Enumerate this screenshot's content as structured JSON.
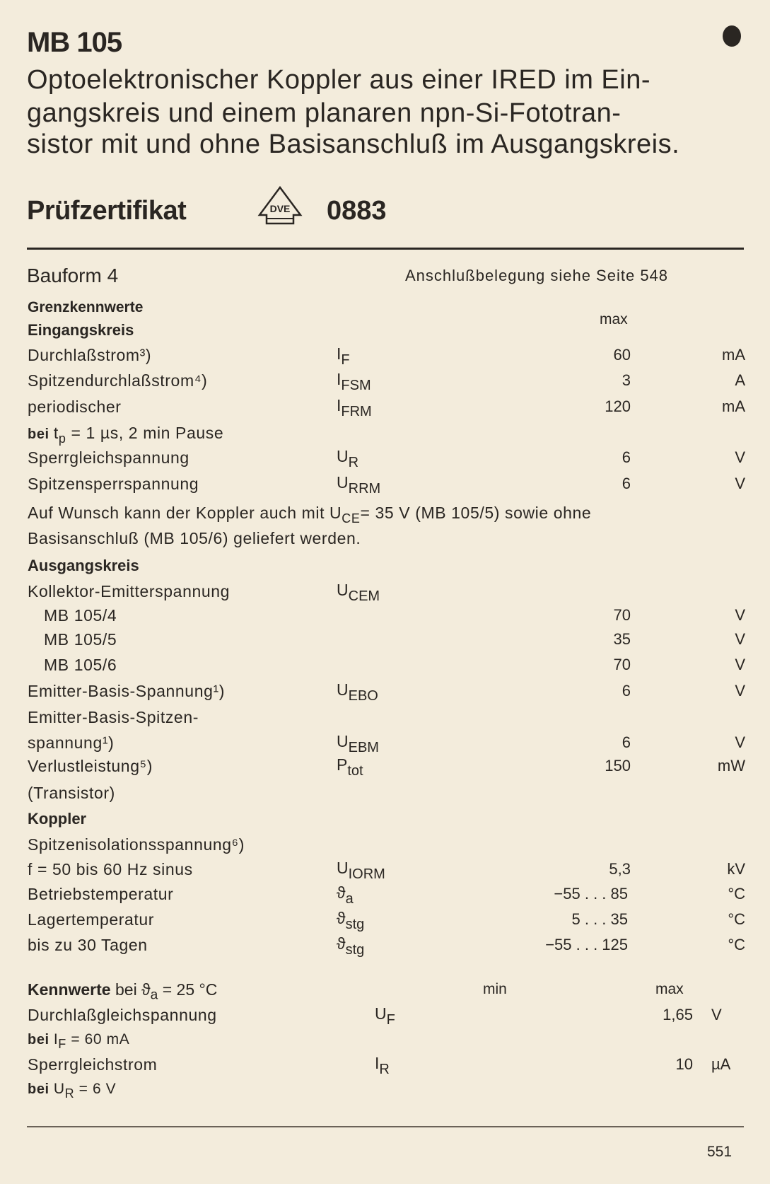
{
  "header": {
    "title": "MB 105",
    "description_lines": [
      "Optoelektronischer Koppler aus einer IRED im Ein-",
      "gangskreis und einem planaren npn-Si-Fototran-",
      "sistor mit und ohne Basisanschluß im Ausgangskreis."
    ],
    "certificate_label": "Prüfzertifikat",
    "certificate_logo_text": "DVE",
    "certificate_number": "0883"
  },
  "package": {
    "bauform": "Bauform 4",
    "pinout_note": "Anschlußbelegung siehe Seite 548"
  },
  "limits": {
    "heading": "Grenzkennwerte",
    "max_label": "max",
    "rows": [
      {
        "type": "heading",
        "label": "Eingangskreis"
      },
      {
        "label": "Durchlaßstrom³)",
        "symbol": "I",
        "sub": "F",
        "value": "60",
        "unit": "mA"
      },
      {
        "label": "Spitzendurchlaßstrom⁴)",
        "symbol": "I",
        "sub": "FSM",
        "value": "3",
        "unit": "A"
      },
      {
        "label": "periodischer",
        "symbol": "I",
        "sub": "FRM",
        "value": "120",
        "unit": "mA"
      },
      {
        "segments": [
          {
            "t": "bei ",
            "b": true
          },
          {
            "t": "t"
          },
          {
            "s": "p"
          },
          {
            "t": " = 1 µs, 2 min Pause"
          }
        ]
      },
      {
        "label": "Sperrgleichspannung",
        "symbol": "U",
        "sub": "R",
        "value": "6",
        "unit": "V"
      },
      {
        "label": "Spitzensperrspannung",
        "symbol": "U",
        "sub": "RRM",
        "value": "6",
        "unit": "V"
      },
      {
        "segments": [
          {
            "t": "Auf Wunsch kann der Koppler auch mit U"
          },
          {
            "s": "CE"
          },
          {
            "t": "= 35 V (MB 105/5) sowie ohne"
          }
        ],
        "wide": true
      },
      {
        "label": "Basisanschluß (MB 105/6) geliefert werden."
      },
      {
        "type": "heading",
        "label": "Ausgangskreis"
      },
      {
        "label": "Kollektor-Emitterspannung",
        "symbol": "U",
        "sub": "CEM"
      },
      {
        "label": "MB 105/4",
        "indent": true,
        "value": "70",
        "unit": "V"
      },
      {
        "label": "MB 105/5",
        "indent": true,
        "value": "35",
        "unit": "V"
      },
      {
        "label": "MB 105/6",
        "indent": true,
        "value": "70",
        "unit": "V"
      },
      {
        "label": "Emitter-Basis-Spannung¹)",
        "symbol": "U",
        "sub": "EBO",
        "value": "6",
        "unit": "V"
      },
      {
        "label": "Emitter-Basis-Spitzen-"
      },
      {
        "label": "spannung¹)",
        "symbol": "U",
        "sub": "EBM",
        "value": "6",
        "unit": "V"
      },
      {
        "label": "Verlustleistung⁵)",
        "symbol": "P",
        "sub": "tot",
        "value": "150",
        "unit": "mW"
      },
      {
        "label": "(Transistor)"
      },
      {
        "type": "heading",
        "label": "Koppler"
      },
      {
        "label": "Spitzenisolationsspannung⁶)"
      },
      {
        "label": "f = 50 bis 60 Hz sinus",
        "symbol": "U",
        "sub": "IORM",
        "value": "5,3",
        "unit": "kV"
      },
      {
        "label": "Betriebstemperatur",
        "symbol": "ϑ",
        "sub": "a",
        "value": "−55 . . . 85",
        "unit": "°C"
      },
      {
        "label": "Lagertemperatur",
        "symbol": "ϑ",
        "sub": "stg",
        "value": "5 . . . 35",
        "unit": "°C"
      },
      {
        "label": "bis zu 30 Tagen",
        "symbol": "ϑ",
        "sub": "stg",
        "value": "−55 . . . 125",
        "unit": "°C"
      }
    ]
  },
  "characteristics": {
    "heading_segments": [
      {
        "t": "Kennwerte",
        "b": true
      },
      {
        "t": " bei ϑ"
      },
      {
        "s": "a"
      },
      {
        "t": " = 25 °C"
      }
    ],
    "min_label": "min",
    "max_label": "max",
    "rows": [
      {
        "label": "Durchlaßgleichspannung",
        "symbol": "U",
        "sub": "F",
        "max": "1,65",
        "unit": "V"
      },
      {
        "segments": [
          {
            "t": "bei ",
            "b": true
          },
          {
            "t": "I"
          },
          {
            "s": "F"
          },
          {
            "t": " = 60 mA"
          }
        ]
      },
      {
        "label": "Sperrgleichstrom",
        "symbol": "I",
        "sub": "R",
        "max": "10",
        "unit": "µA"
      },
      {
        "segments": [
          {
            "t": "bei ",
            "b": true
          },
          {
            "t": "U"
          },
          {
            "s": "R"
          },
          {
            "t": " = 6 V"
          }
        ]
      }
    ]
  },
  "footer": {
    "page_number": "551"
  }
}
